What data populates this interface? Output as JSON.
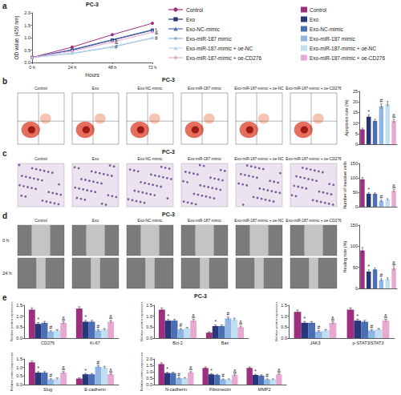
{
  "panels": [
    {
      "label": "a",
      "title": "PC-3"
    },
    {
      "label": "b",
      "title": "PC-3",
      "images": [
        "Control",
        "Exo",
        "Exo-NC-mimic",
        "Exo-miR-187 mimic",
        "Exo-miR-187-mimic + oe-NC",
        "Exo-miR-187-mimic + oe-CD276"
      ]
    },
    {
      "label": "c",
      "title": "PC-3",
      "images": [
        "Control",
        "Exo",
        "Exo-NC-mimic",
        "Exo-miR-187 mimic",
        "Exo-miR-187-mimic + oe-NC",
        "Exo-miR-187-mimic + oe-CD276"
      ]
    },
    {
      "label": "d",
      "title": "PC-3",
      "images": [
        "Control",
        "Exo",
        "Exo-NC-mimic",
        "Exo-miR-187 mimic",
        "Exo-miR-187-mimic + oe-NC",
        "Exo-miR-187-mimic + oe-CD276"
      ],
      "image_rows": [
        "0 h",
        "24 h"
      ]
    },
    {
      "label": "e",
      "title": "PC-3"
    }
  ],
  "chart_data": [
    {
      "type": "line",
      "xlabel": "Hours",
      "ylabel": "OD value (450 nm)",
      "categories": [
        "0 h",
        "24 h",
        "48 h",
        "72 h"
      ],
      "series": [
        {
          "name": "Control",
          "color": "#9e2f7f",
          "marker": "circle",
          "values": [
            0.2,
            0.62,
            1.12,
            1.58
          ]
        },
        {
          "name": "Exo",
          "color": "#28377a",
          "marker": "rect",
          "values": [
            0.2,
            0.5,
            0.9,
            1.3
          ],
          "annotations": [
            null,
            null,
            "*",
            "*"
          ]
        },
        {
          "name": "Exo-NC-mimic",
          "color": "#4a6fb5",
          "marker": "triangle",
          "values": [
            0.2,
            0.52,
            0.92,
            1.32
          ]
        },
        {
          "name": "Exo-miR-187 mimic",
          "color": "#8fb6e2",
          "marker": "diamond",
          "values": [
            0.2,
            0.36,
            0.62,
            0.98
          ],
          "annotations": [
            null,
            null,
            "#",
            "#"
          ]
        },
        {
          "name": "Exo-miR-187-mimic + oe-NC",
          "color": "#b9d7ef",
          "marker": "triangle",
          "values": [
            0.2,
            0.38,
            0.64,
            1.0
          ]
        },
        {
          "name": "Exo-miR-187-mimic + oe-CD276",
          "color": "#e7a9d2",
          "marker": "diamond",
          "values": [
            0.2,
            0.46,
            0.82,
            1.22
          ],
          "annotations": [
            null,
            null,
            "&",
            "&"
          ]
        }
      ],
      "ylim": [
        0,
        2
      ],
      "yticks": [
        {
          "value": 0,
          "label": "0.0"
        },
        0.5,
        {
          "value": 1,
          "label": "1.0"
        },
        1.5,
        {
          "value": 2,
          "label": "2.0"
        }
      ],
      "grid": false
    },
    {
      "type": "bar",
      "ylabel": "Apoptosis rate (%)",
      "categories": [
        "Control",
        "Exo",
        "Exo-NC-mimic",
        "Exo-miR-187 mimic",
        "Exo-miR-187-mimic + oe-NC",
        "Exo-miR-187-mimic + oe-CD276"
      ],
      "values": [
        7,
        13,
        11,
        18,
        19,
        11
      ],
      "errors": [
        0.6,
        0.9,
        0.8,
        1.1,
        1.2,
        0.8
      ],
      "annotations": [
        null,
        "*",
        null,
        "#",
        null,
        "&"
      ],
      "colors": [
        "#9e2f7f",
        "#28377a",
        "#4a6fb5",
        "#8fb6e2",
        "#c2def2",
        "#e7a9d2"
      ],
      "ylim": [
        0,
        25
      ],
      "yticks": [
        0,
        5,
        10,
        15,
        20,
        25
      ],
      "tick_labels": "y",
      "grid": false
    },
    {
      "type": "bar",
      "ylabel": "Number of invasive cells",
      "categories": [
        "Control",
        "Exo",
        "Exo-NC-mimic",
        "Exo-miR-187 mimic",
        "Exo-miR-187-mimic + oe-NC",
        "Exo-miR-187-mimic + oe-CD276"
      ],
      "values": [
        95,
        45,
        45,
        20,
        25,
        55
      ],
      "errors": [
        6,
        4,
        4,
        3,
        3,
        5
      ],
      "annotations": [
        null,
        "*",
        null,
        "#",
        null,
        "&"
      ],
      "colors": [
        "#9e2f7f",
        "#28377a",
        "#4a6fb5",
        "#8fb6e2",
        "#c2def2",
        "#e7a9d2"
      ],
      "ylim": [
        0,
        150
      ],
      "yticks": [
        0,
        50,
        100,
        150
      ],
      "tick_labels": "y",
      "grid": false
    },
    {
      "type": "bar",
      "ylabel": "Healing rate (%)",
      "categories": [
        "Control",
        "Exo",
        "Exo-NC-mimic",
        "Exo-miR-187 mimic",
        "Exo-miR-187-mimic + oe-NC",
        "Exo-miR-187-mimic + oe-CD276"
      ],
      "values": [
        90,
        40,
        45,
        20,
        22,
        48
      ],
      "errors": [
        7,
        4,
        4,
        3,
        3,
        5
      ],
      "annotations": [
        null,
        "*",
        null,
        "#",
        null,
        "&"
      ],
      "colors": [
        "#9e2f7f",
        "#28377a",
        "#4a6fb5",
        "#8fb6e2",
        "#c2def2",
        "#e7a9d2"
      ],
      "ylim": [
        0,
        150
      ],
      "yticks": [
        0,
        50,
        100,
        150
      ],
      "tick_labels": "y",
      "grid": false
    },
    {
      "type": "bar",
      "ylabel": "Relative protein expression",
      "categories": [
        "CD276",
        "Ki-67"
      ],
      "series": [
        {
          "name": "Control",
          "color": "#9e2f7f",
          "values": [
            1.3,
            1.35
          ],
          "errors": [
            0.08,
            0.08
          ]
        },
        {
          "name": "Exo",
          "color": "#28377a",
          "values": [
            0.65,
            0.75
          ],
          "errors": [
            0.06,
            0.06
          ],
          "annotations": [
            "*",
            "*"
          ]
        },
        {
          "name": "Exo-NC-mimic",
          "color": "#4a6fb5",
          "values": [
            0.7,
            0.75
          ],
          "errors": [
            0.06,
            0.06
          ]
        },
        {
          "name": "Exo-miR-187 mimic",
          "color": "#8fb6e2",
          "values": [
            0.3,
            0.35
          ],
          "errors": [
            0.04,
            0.04
          ],
          "annotations": [
            "#",
            "#"
          ]
        },
        {
          "name": "Exo-miR-187-mimic + oe-NC",
          "color": "#c2def2",
          "values": [
            0.35,
            0.4
          ],
          "errors": [
            0.04,
            0.04
          ]
        },
        {
          "name": "Exo-miR-187-mimic + oe-CD276",
          "color": "#e7a9d2",
          "values": [
            0.7,
            0.75
          ],
          "errors": [
            0.06,
            0.06
          ],
          "annotations": [
            "&",
            "&"
          ]
        }
      ],
      "ylim": [
        0,
        1.5
      ],
      "yticks": [
        {
          "value": 0,
          "label": "0.0"
        },
        0.5,
        {
          "value": 1,
          "label": "1.0"
        },
        1.5
      ],
      "grid": false
    },
    {
      "type": "bar",
      "ylabel": "Relative protein expression",
      "categories": [
        "Bcl-2",
        "Bax"
      ],
      "series": [
        {
          "name": "Control",
          "color": "#9e2f7f",
          "values": [
            1.3,
            0.25
          ],
          "errors": [
            0.08,
            0.04
          ]
        },
        {
          "name": "Exo",
          "color": "#28377a",
          "values": [
            0.8,
            0.55
          ],
          "errors": [
            0.06,
            0.05
          ],
          "annotations": [
            "*",
            "*"
          ]
        },
        {
          "name": "Exo-NC-mimic",
          "color": "#4a6fb5",
          "values": [
            0.8,
            0.55
          ],
          "errors": [
            0.06,
            0.05
          ]
        },
        {
          "name": "Exo-miR-187 mimic",
          "color": "#8fb6e2",
          "values": [
            0.4,
            0.9
          ],
          "errors": [
            0.04,
            0.06
          ],
          "annotations": [
            "#",
            "#"
          ]
        },
        {
          "name": "Exo-miR-187-mimic + oe-NC",
          "color": "#c2def2",
          "values": [
            0.45,
            0.85
          ],
          "errors": [
            0.04,
            0.06
          ]
        },
        {
          "name": "Exo-miR-187-mimic + oe-CD276",
          "color": "#e7a9d2",
          "values": [
            0.8,
            0.5
          ],
          "errors": [
            0.06,
            0.05
          ],
          "annotations": [
            "&",
            "&"
          ]
        }
      ],
      "ylim": [
        0,
        1.5
      ],
      "yticks": [
        {
          "value": 0,
          "label": "0.0"
        },
        0.5,
        {
          "value": 1,
          "label": "1.0"
        },
        1.5
      ],
      "grid": false
    },
    {
      "type": "bar",
      "ylabel": "Relative protein expression",
      "categories": [
        "JAK3",
        "p-STAT3/STAT3"
      ],
      "series": [
        {
          "name": "Control",
          "color": "#9e2f7f",
          "values": [
            1.2,
            1.3
          ],
          "errors": [
            0.08,
            0.08
          ]
        },
        {
          "name": "Exo",
          "color": "#28377a",
          "values": [
            0.7,
            0.8
          ],
          "errors": [
            0.06,
            0.06
          ],
          "annotations": [
            "*",
            "*"
          ]
        },
        {
          "name": "Exo-NC-mimic",
          "color": "#4a6fb5",
          "values": [
            0.7,
            0.75
          ],
          "errors": [
            0.06,
            0.06
          ]
        },
        {
          "name": "Exo-miR-187 mimic",
          "color": "#8fb6e2",
          "values": [
            0.3,
            0.35
          ],
          "errors": [
            0.04,
            0.04
          ],
          "annotations": [
            "#",
            "#"
          ]
        },
        {
          "name": "Exo-miR-187-mimic + oe-NC",
          "color": "#c2def2",
          "values": [
            0.35,
            0.4
          ],
          "errors": [
            0.04,
            0.04
          ]
        },
        {
          "name": "Exo-miR-187-mimic + oe-CD276",
          "color": "#e7a9d2",
          "values": [
            0.7,
            0.8
          ],
          "errors": [
            0.06,
            0.06
          ],
          "annotations": [
            "&",
            "&"
          ]
        }
      ],
      "ylim": [
        0,
        1.5
      ],
      "yticks": [
        {
          "value": 0,
          "label": "0.0"
        },
        0.5,
        {
          "value": 1,
          "label": "1.0"
        },
        1.5
      ],
      "grid": false
    },
    {
      "type": "bar",
      "ylabel": "Relative protein expression",
      "categories": [
        "Slug",
        "E-cadherin"
      ],
      "series": [
        {
          "name": "Control",
          "color": "#9e2f7f",
          "values": [
            1.3,
            0.35
          ],
          "errors": [
            0.08,
            0.04
          ]
        },
        {
          "name": "Exo",
          "color": "#28377a",
          "values": [
            0.7,
            0.6
          ],
          "errors": [
            0.06,
            0.05
          ],
          "annotations": [
            "*",
            "*"
          ]
        },
        {
          "name": "Exo-NC-mimic",
          "color": "#4a6fb5",
          "values": [
            0.7,
            0.6
          ],
          "errors": [
            0.06,
            0.05
          ]
        },
        {
          "name": "Exo-miR-187 mimic",
          "color": "#8fb6e2",
          "values": [
            0.3,
            1.05
          ],
          "errors": [
            0.04,
            0.07
          ],
          "annotations": [
            "#",
            "#"
          ]
        },
        {
          "name": "Exo-miR-187-mimic + oe-NC",
          "color": "#c2def2",
          "values": [
            0.35,
            1.0
          ],
          "errors": [
            0.04,
            0.07
          ]
        },
        {
          "name": "Exo-miR-187-mimic + oe-CD276",
          "color": "#e7a9d2",
          "values": [
            0.7,
            0.6
          ],
          "errors": [
            0.06,
            0.05
          ],
          "annotations": [
            "&",
            "&"
          ]
        }
      ],
      "ylim": [
        0,
        1.5
      ],
      "yticks": [
        {
          "value": 0,
          "label": "0.0"
        },
        0.5,
        {
          "value": 1,
          "label": "1.0"
        },
        1.5
      ],
      "grid": false
    },
    {
      "type": "bar",
      "ylabel": "Relative protein expression",
      "categories": [
        "N-cadherin",
        "Fibronectin",
        "MMP2"
      ],
      "series": [
        {
          "name": "Control",
          "color": "#9e2f7f",
          "values": [
            1.6,
            1.3,
            1.3
          ],
          "errors": [
            0.1,
            0.08,
            0.08
          ]
        },
        {
          "name": "Exo",
          "color": "#28377a",
          "values": [
            0.9,
            0.8,
            0.75
          ],
          "errors": [
            0.06,
            0.06,
            0.06
          ],
          "annotations": [
            "*",
            "*",
            "*"
          ]
        },
        {
          "name": "Exo-NC-mimic",
          "color": "#4a6fb5",
          "values": [
            0.9,
            0.75,
            0.7
          ],
          "errors": [
            0.06,
            0.06,
            0.06
          ]
        },
        {
          "name": "Exo-miR-187 mimic",
          "color": "#8fb6e2",
          "values": [
            0.5,
            0.4,
            0.4
          ],
          "errors": [
            0.05,
            0.04,
            0.04
          ],
          "annotations": [
            "#",
            "#",
            "#"
          ]
        },
        {
          "name": "Exo-miR-187-mimic + oe-NC",
          "color": "#c2def2",
          "values": [
            0.5,
            0.4,
            0.4
          ],
          "errors": [
            0.05,
            0.04,
            0.04
          ]
        },
        {
          "name": "Exo-miR-187-mimic + oe-CD276",
          "color": "#e7a9d2",
          "values": [
            0.95,
            0.75,
            0.8
          ],
          "errors": [
            0.06,
            0.06,
            0.06
          ],
          "annotations": [
            "&",
            "&",
            "&"
          ]
        }
      ],
      "ylim": [
        0,
        2
      ],
      "yticks": [
        {
          "value": 0,
          "label": "0.0"
        },
        0.5,
        {
          "value": 1,
          "label": "1.0"
        },
        1.5,
        {
          "value": 2,
          "label": "2.0"
        }
      ],
      "grid": false
    }
  ]
}
